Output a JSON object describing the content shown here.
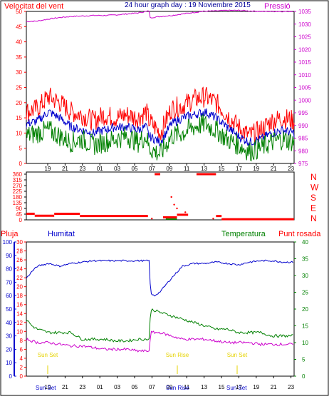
{
  "header": {
    "left": "Velocitat del vent",
    "center": "24 hour graph day : 19 Noviembre 2015",
    "right": "Pressió"
  },
  "colors": {
    "red": "#ff0000",
    "blue": "#0000cc",
    "green": "#008000",
    "magenta": "#cc00cc",
    "yellow": "#e6d300",
    "frame": "#000000"
  },
  "time_labels": [
    "19",
    "21",
    "23",
    "01",
    "03",
    "05",
    "07",
    "09",
    "11",
    "13",
    "15",
    "17",
    "19",
    "21",
    "23"
  ],
  "wind_dir_axis": [
    "N",
    "W",
    "S",
    "E",
    "N"
  ],
  "temp_headers": {
    "rain": "Pluja",
    "humidity": "Humitat",
    "temperature": "Temperatura",
    "dewpoint": "Punt rosada"
  },
  "sun_labels": [
    "Sun Set",
    "Sun Rise",
    "Sun Set"
  ],
  "bottom_labels": {
    "sunset1": "Sun Set",
    "sunrise": "Sun Rise",
    "sunset2": "Sun Set"
  },
  "chart_data": [
    {
      "type": "line",
      "name": "wind_pressure",
      "ylim_left": [
        0,
        50
      ],
      "ylim_right": [
        975,
        1035
      ],
      "left_ticks": [
        0,
        5,
        10,
        15,
        20,
        25,
        30,
        35,
        40,
        45,
        50
      ],
      "right_ticks": [
        975,
        980,
        985,
        990,
        995,
        1000,
        1005,
        1010,
        1015,
        1020,
        1025,
        1030,
        1035
      ],
      "series": [
        {
          "name": "Pressió",
          "axis": "right",
          "color": "magenta",
          "x": [
            0,
            2,
            4,
            6,
            8,
            10,
            12,
            14,
            16,
            18,
            20,
            21.5,
            22,
            22.2,
            24,
            26,
            28,
            30,
            32,
            34,
            36,
            38,
            40,
            42,
            44,
            46,
            48
          ],
          "y": [
            1031,
            1031.2,
            1032,
            1032.6,
            1033,
            1033.2,
            1033.4,
            1033.4,
            1033.6,
            1034,
            1034.4,
            1035,
            1035.2,
            1032.5,
            1033,
            1033.4,
            1034,
            1034.6,
            1035.1,
            1035.2,
            1035.4,
            1035.4,
            1035.2,
            1035,
            1035,
            1035,
            1035
          ]
        },
        {
          "name": "gust",
          "axis": "left",
          "color": "red",
          "x": [
            0,
            2,
            4,
            6,
            8,
            10,
            12,
            14,
            16,
            18,
            20,
            21.5,
            22,
            24,
            26,
            28,
            30,
            32,
            34,
            36,
            38,
            40,
            42,
            44,
            46,
            48
          ],
          "y": [
            17,
            18,
            22,
            20,
            17,
            16,
            14,
            16,
            15,
            16,
            15,
            17,
            14,
            10,
            18,
            19,
            21,
            22,
            20,
            16,
            12,
            9,
            11,
            14,
            15,
            14
          ]
        },
        {
          "name": "avg",
          "axis": "left",
          "color": "blue",
          "x": [
            0,
            2,
            4,
            6,
            8,
            10,
            12,
            14,
            16,
            18,
            20,
            21.5,
            22,
            24,
            26,
            28,
            30,
            32,
            34,
            36,
            38,
            40,
            42,
            44,
            46,
            48
          ],
          "y": [
            13,
            14,
            17,
            15,
            12,
            11,
            10,
            11,
            12,
            12,
            11,
            12,
            9,
            7,
            13,
            15,
            16,
            17,
            15,
            12,
            9,
            7,
            8,
            10,
            11,
            10
          ]
        },
        {
          "name": "min",
          "axis": "left",
          "color": "green",
          "x": [
            0,
            2,
            4,
            6,
            8,
            10,
            12,
            14,
            16,
            18,
            20,
            21.5,
            22,
            24,
            26,
            28,
            30,
            32,
            34,
            36,
            38,
            40,
            42,
            44,
            46,
            48
          ],
          "y": [
            9,
            10,
            11,
            9,
            7,
            8,
            6,
            7,
            8,
            9,
            7,
            9,
            5,
            3,
            9,
            10,
            12,
            13,
            11,
            8,
            6,
            4,
            5,
            7,
            8,
            7
          ]
        }
      ]
    },
    {
      "type": "scatter",
      "name": "wind_direction",
      "ylim": [
        0,
        360
      ],
      "ticks": [
        0,
        45,
        90,
        135,
        180,
        225,
        270,
        315,
        360
      ],
      "segments": [
        {
          "x0": 0,
          "x1": 1.5,
          "y": 48
        },
        {
          "x0": 1.5,
          "x1": 5,
          "y": 32
        },
        {
          "x0": 5,
          "x1": 9.6,
          "y": 48
        },
        {
          "x0": 9.6,
          "x1": 21.8,
          "y": 30
        },
        {
          "x0": 23,
          "x1": 24,
          "y": 360
        },
        {
          "x0": 24.5,
          "x1": 27,
          "y": 20
        },
        {
          "x0": 27,
          "x1": 29,
          "y": 40
        },
        {
          "x0": 30.5,
          "x1": 34,
          "y": 360
        },
        {
          "x0": 34,
          "x1": 35,
          "y": 30
        },
        {
          "x0": 35,
          "x1": 48,
          "y": 5
        }
      ]
    },
    {
      "type": "line",
      "name": "humidity_temperature",
      "ylim_humidity": [
        0,
        100
      ],
      "ylim_rain": [
        0,
        30
      ],
      "ylim_temp": [
        0,
        40
      ],
      "humidity_ticks": [
        0,
        10,
        20,
        30,
        40,
        50,
        60,
        70,
        80,
        90,
        100
      ],
      "rain_ticks": [
        0,
        2,
        4,
        6,
        8,
        10,
        12,
        14,
        16,
        18,
        20,
        22,
        24,
        26,
        28,
        30
      ],
      "temp_ticks": [
        0,
        5,
        10,
        15,
        20,
        25,
        30,
        35,
        40
      ],
      "series": [
        {
          "name": "Humitat",
          "color": "blue",
          "x": [
            0,
            1,
            2,
            4,
            6,
            8,
            10,
            12,
            14,
            16,
            18,
            20,
            22,
            22.3,
            23,
            24,
            26,
            28,
            30,
            32,
            34,
            36,
            38,
            40,
            42,
            44,
            46,
            48
          ],
          "y": [
            73,
            78,
            82,
            84,
            82,
            84,
            85,
            86,
            86,
            86,
            86,
            86,
            86,
            61,
            60,
            63,
            73,
            82,
            84,
            84,
            85,
            84,
            83,
            85,
            86,
            86,
            85,
            85
          ]
        },
        {
          "name": "Temperatura",
          "color": "green",
          "x": [
            0,
            1,
            2,
            4,
            6,
            8,
            10,
            12,
            14,
            16,
            18,
            20,
            22,
            22.3,
            24,
            26,
            28,
            30,
            32,
            34,
            36,
            38,
            40,
            42,
            44,
            46,
            48
          ],
          "y": [
            17,
            15,
            14,
            13,
            13,
            13,
            11,
            11,
            11,
            10.5,
            10.5,
            11,
            11,
            20,
            19,
            18,
            17,
            16,
            15,
            14,
            14,
            13,
            13,
            13,
            12,
            12,
            12
          ]
        },
        {
          "name": "Punt rosada",
          "color": "magenta",
          "x": [
            0,
            2,
            4,
            6,
            8,
            10,
            12,
            14,
            16,
            18,
            20,
            22,
            22.3,
            24,
            26,
            28,
            30,
            32,
            34,
            36,
            38,
            40,
            42,
            44,
            46,
            48
          ],
          "y": [
            11,
            10,
            10,
            9.5,
            9,
            9,
            8.5,
            8,
            8,
            8,
            7.5,
            7.5,
            13,
            13,
            12,
            11,
            11,
            11,
            10.5,
            10,
            10,
            10,
            9.5,
            9.5,
            9.5,
            9.5
          ]
        }
      ]
    }
  ]
}
